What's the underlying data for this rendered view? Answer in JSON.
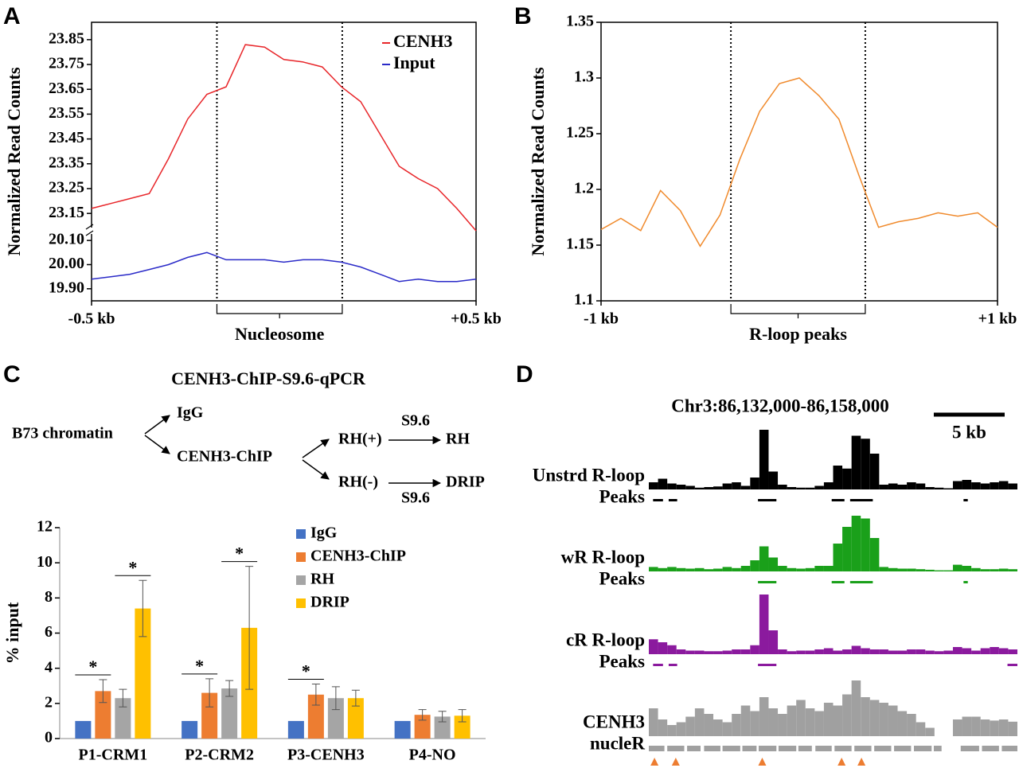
{
  "panels": [
    "A",
    "B",
    "C",
    "D"
  ],
  "chart_data": [
    {
      "type": "line",
      "y_label": "Normalized Read Counts",
      "x": [
        -0.5,
        -0.45,
        -0.4,
        -0.35,
        -0.3,
        -0.25,
        -0.2,
        -0.15,
        -0.1,
        -0.05,
        0,
        0.05,
        0.1,
        0.15,
        0.2,
        0.25,
        0.3,
        0.35,
        0.4,
        0.45,
        0.5
      ],
      "xlim": [
        -0.5,
        0.5
      ],
      "xticks": [
        {
          "value": -0.5,
          "label": "-0.5 kb"
        },
        {
          "value": 0.5,
          "label": "+0.5 kb"
        }
      ],
      "ylim": [
        23.08,
        23.92
      ],
      "yticks": [
        23.15,
        23.25,
        23.35,
        23.45,
        23.55,
        23.65,
        23.75,
        23.85
      ],
      "y2lim": [
        19.85,
        20.14
      ],
      "y2ticks": [
        {
          "value": 19.9,
          "label": "19.90"
        },
        {
          "value": 20,
          "label": "20.00"
        },
        {
          "value": 20.1,
          "label": "20.10"
        }
      ],
      "axis_break": true,
      "series": [
        {
          "name": "CENH3",
          "color": "#e8262a",
          "values": [
            23.17,
            23.19,
            23.21,
            23.23,
            23.37,
            23.53,
            23.63,
            23.66,
            23.83,
            23.82,
            23.77,
            23.76,
            23.74,
            23.66,
            23.6,
            23.47,
            23.34,
            23.29,
            23.25,
            23.17,
            23.08
          ]
        },
        {
          "name": "Input",
          "color": "#2a2ac8",
          "axis": "y2",
          "values": [
            19.94,
            19.95,
            19.96,
            19.98,
            20.0,
            20.03,
            20.05,
            20.02,
            20.02,
            20.02,
            20.01,
            20.02,
            20.02,
            20.01,
            19.99,
            19.96,
            19.93,
            19.94,
            19.93,
            19.93,
            19.94
          ]
        }
      ],
      "legend": "upper right",
      "regions": [
        {
          "label": "Nucleosome",
          "start": -0.174,
          "end": 0.152
        }
      ]
    },
    {
      "type": "line",
      "y_label": "Normalized Read Counts",
      "x": [
        -1,
        -0.9,
        -0.8,
        -0.7,
        -0.6,
        -0.5,
        -0.4,
        -0.3,
        -0.2,
        -0.1,
        0,
        0.1,
        0.2,
        0.3,
        0.4,
        0.5,
        0.6,
        0.7,
        0.8,
        0.9,
        1
      ],
      "xlim": [
        -1,
        1
      ],
      "xticks": [
        {
          "value": -1,
          "label": "-1 kb"
        },
        {
          "value": 1,
          "label": "+1 kb"
        }
      ],
      "ylim": [
        1.1,
        1.35
      ],
      "yticks": [
        1.1,
        1.15,
        1.2,
        1.25,
        1.3,
        1.35
      ],
      "color": "#f08a2c",
      "values": [
        1.164,
        1.174,
        1.163,
        1.199,
        1.181,
        1.149,
        1.177,
        1.227,
        1.27,
        1.295,
        1.3,
        1.284,
        1.263,
        1.213,
        1.166,
        1.171,
        1.174,
        1.179,
        1.176,
        1.179,
        1.166
      ],
      "regions": [
        {
          "label": "R-loop peaks",
          "start": -0.345,
          "end": 0.333
        }
      ]
    },
    {
      "type": "bar",
      "y_label": "% input",
      "categories": [
        "P1-CRM1",
        "P2-CRM2",
        "P3-CENH3",
        "P4-NO"
      ],
      "ylim": [
        0,
        12
      ],
      "yticks": [
        0,
        2,
        4,
        6,
        8,
        10,
        12
      ],
      "series": [
        {
          "name": "IgG",
          "color": "#4472c4",
          "values": [
            1,
            1,
            1,
            1
          ]
        },
        {
          "name": "CENH3-ChIP",
          "color": "#ed7d31",
          "values": [
            2.7,
            2.6,
            2.5,
            1.35
          ],
          "errors": [
            0.65,
            0.8,
            0.6,
            0.3
          ]
        },
        {
          "name": "RH",
          "color": "#a5a5a5",
          "values": [
            2.3,
            2.85,
            2.3,
            1.25
          ],
          "errors": [
            0.5,
            0.45,
            0.65,
            0.3
          ]
        },
        {
          "name": "DRIP",
          "color": "#ffc000",
          "values": [
            7.4,
            6.3,
            2.3,
            1.3
          ],
          "errors": [
            1.6,
            3.5,
            0.45,
            0.35
          ]
        }
      ],
      "legend": "upper right",
      "annotations": [
        {
          "text": "*",
          "category": "P1-CRM1",
          "between": [
            "IgG",
            "CENH3-ChIP"
          ]
        },
        {
          "text": "*",
          "category": "P1-CRM1",
          "between": [
            "RH",
            "DRIP"
          ]
        },
        {
          "text": "*",
          "category": "P2-CRM2",
          "between": [
            "IgG",
            "CENH3-ChIP"
          ]
        },
        {
          "text": "*",
          "category": "P2-CRM2",
          "between": [
            "RH",
            "DRIP"
          ]
        },
        {
          "text": "*",
          "category": "P3-CENH3",
          "between": [
            "IgG",
            "CENH3-ChIP"
          ]
        }
      ]
    },
    {
      "type": "track",
      "title": "Chr3:86,132,000-86,158,000",
      "xlim": [
        86132000,
        86158000
      ],
      "scale_bar": {
        "label": "5 kb",
        "length": 5000
      },
      "bins": [
        86132000,
        86132650,
        86133300,
        86133950,
        86134600,
        86135250,
        86135900,
        86136550,
        86137200,
        86137850,
        86138500,
        86139150,
        86139800,
        86140450,
        86141100,
        86141750,
        86142400,
        86143050,
        86143700,
        86144350,
        86145000,
        86145650,
        86146300,
        86146950,
        86147600,
        86148250,
        86148900,
        86149550,
        86150200,
        86150850,
        86151500,
        86152150,
        86152800,
        86153450,
        86154100,
        86154750,
        86155400,
        86156050,
        86156700,
        86157350,
        86158000
      ],
      "tracks": [
        {
          "name": "Unstrd R-loop",
          "peaks_name": "Peaks",
          "color": "#000000",
          "values": [
            12,
            18,
            10,
            8,
            6,
            3,
            4,
            5,
            10,
            12,
            6,
            20,
            100,
            30,
            8,
            4,
            3,
            3,
            6,
            12,
            40,
            35,
            90,
            85,
            60,
            8,
            10,
            8,
            12,
            10,
            4,
            3,
            2,
            14,
            16,
            12,
            10,
            12,
            14,
            10
          ],
          "peaks": [
            [
              86132300,
              86133000
            ],
            [
              86133400,
              86134000
            ],
            [
              86139700,
              86141000
            ],
            [
              86144900,
              86145800
            ],
            [
              86146200,
              86147800
            ],
            [
              86154200,
              86154500
            ]
          ]
        },
        {
          "name": "wR R-loop",
          "peaks_name": "Peaks",
          "color": "#1aa01a",
          "values": [
            8,
            6,
            8,
            6,
            5,
            6,
            4,
            5,
            8,
            6,
            10,
            20,
            45,
            25,
            10,
            6,
            5,
            6,
            10,
            10,
            50,
            80,
            100,
            95,
            60,
            8,
            6,
            5,
            5,
            4,
            3,
            2,
            2,
            12,
            10,
            6,
            4,
            4,
            5,
            4
          ],
          "peaks": [
            [
              86139700,
              86141000
            ],
            [
              86144900,
              86145800
            ],
            [
              86146200,
              86147800
            ],
            [
              86154200,
              86154500
            ]
          ]
        },
        {
          "name": "cR R-loop",
          "peaks_name": "Peaks",
          "color": "#8b1a9e",
          "values": [
            25,
            20,
            15,
            8,
            6,
            6,
            5,
            5,
            6,
            8,
            8,
            15,
            100,
            40,
            8,
            5,
            6,
            6,
            8,
            10,
            6,
            8,
            14,
            10,
            8,
            8,
            6,
            6,
            8,
            8,
            6,
            5,
            6,
            12,
            10,
            6,
            10,
            12,
            10,
            8
          ],
          "peaks": [
            [
              86132300,
              86133000
            ],
            [
              86133400,
              86134000
            ],
            [
              86139700,
              86141000
            ],
            [
              86157300,
              86158000
            ]
          ]
        },
        {
          "name": "CENH3",
          "peaks_name": "nucleR",
          "color": "#a0a0a0",
          "values": [
            50,
            30,
            20,
            25,
            35,
            50,
            40,
            30,
            25,
            40,
            55,
            45,
            70,
            50,
            40,
            55,
            65,
            50,
            45,
            60,
            55,
            75,
            100,
            70,
            65,
            60,
            55,
            45,
            40,
            25,
            15,
            0,
            0,
            30,
            35,
            35,
            30,
            28,
            30,
            26
          ],
          "peaks": [
            [
              86132000,
              86133100
            ],
            [
              86133300,
              86134500
            ],
            [
              86134700,
              86135650
            ],
            [
              86135900,
              86137050
            ],
            [
              86137200,
              86138450
            ],
            [
              86138600,
              86139600
            ],
            [
              86139750,
              86141000
            ],
            [
              86141150,
              86142400
            ],
            [
              86142550,
              86143500
            ],
            [
              86143750,
              86144900
            ],
            [
              86145100,
              86146300
            ],
            [
              86146500,
              86147700
            ],
            [
              86147900,
              86149100
            ],
            [
              86149300,
              86150500
            ],
            [
              86150700,
              86151950
            ],
            [
              86152100,
              86152650
            ],
            [
              86154000,
              86155300
            ],
            [
              86155500,
              86156700
            ],
            [
              86156900,
              86158000
            ]
          ]
        }
      ],
      "markers": {
        "color": "#ed7d31",
        "positions": [
          86132400,
          86133900,
          86140000,
          86145600,
          86147000
        ]
      }
    }
  ],
  "scheme": {
    "title": "CENH3-ChIP-S9.6-qPCR",
    "source": "B73 chromatin",
    "ip": [
      "IgG",
      "CENH3-ChIP"
    ],
    "split": [
      "RH(+)",
      "RH(-)"
    ],
    "antibody": [
      "S9.6",
      "S9.6"
    ],
    "result": [
      "RH",
      "DRIP"
    ]
  }
}
